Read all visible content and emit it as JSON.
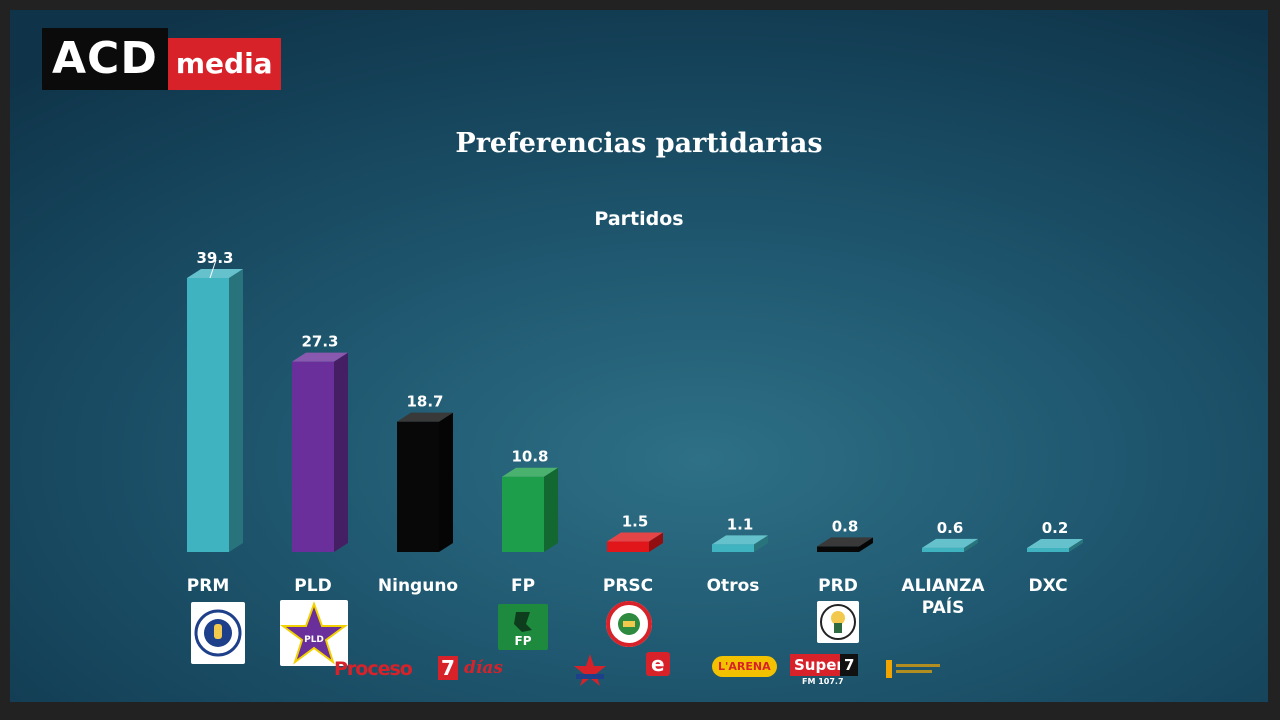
{
  "logo": {
    "part1": "ACD",
    "part2": "media"
  },
  "chart_data": {
    "type": "bar",
    "title": "Preferencias partidarias",
    "subtitle": "Partidos",
    "categories": [
      "PRM",
      "PLD",
      "Ninguno",
      "FP",
      "PRSC",
      "Otros",
      "PRD",
      "ALIANZA PAÍS",
      "DXC"
    ],
    "category_lines": [
      [
        "PRM"
      ],
      [
        "PLD"
      ],
      [
        "Ninguno"
      ],
      [
        "FP"
      ],
      [
        "PRSC"
      ],
      [
        "Otros"
      ],
      [
        "PRD"
      ],
      [
        "ALIANZA",
        "PAÍS"
      ],
      [
        "DXC"
      ]
    ],
    "values": [
      39.3,
      27.3,
      18.7,
      10.8,
      1.5,
      1.1,
      0.8,
      0.6,
      0.2
    ],
    "value_labels": [
      "39.3",
      "27.3",
      "18.7",
      "10.8",
      "1.5",
      "1.1",
      "0.8",
      "0.6",
      "0.2"
    ],
    "colors": [
      "#3fb3bf",
      "#6a2f9a",
      "#080808",
      "#1d9e4a",
      "#e0161a",
      "#3fb3bf",
      "#080808",
      "#3fb3bf",
      "#3fb3bf"
    ],
    "ylim": [
      0,
      40
    ],
    "grid": false,
    "legend": "none"
  },
  "party_logos": {
    "FP": "FP",
    "PLD": "PLD"
  },
  "sponsors": [
    "Proceso",
    "7",
    "días",
    "e",
    "L'ARENA",
    "Super",
    "7",
    "FM 107.7"
  ]
}
